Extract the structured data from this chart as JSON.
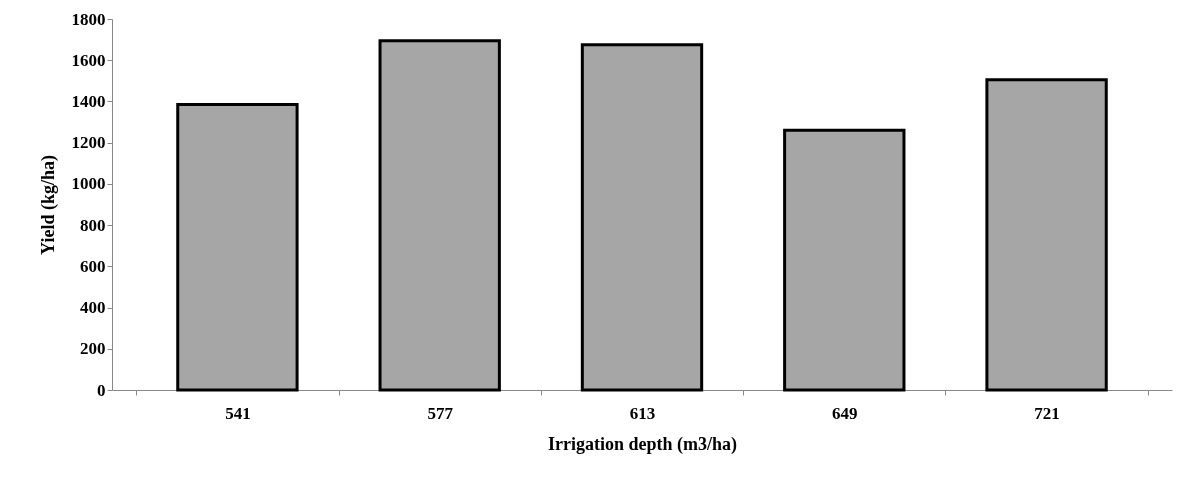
{
  "chart_data": {
    "type": "bar",
    "xlabel": "Irrigation depth (m3/ha)",
    "ylabel": "Yield (kg/ha)",
    "categories": [
      "541",
      "577",
      "613",
      "649",
      "721"
    ],
    "values": [
      1385,
      1695,
      1675,
      1260,
      1505
    ],
    "color": "#a6a6a6",
    "ylim": [
      0,
      1800
    ],
    "yticks": [
      0,
      200,
      400,
      600,
      800,
      1000,
      1200,
      1400,
      1600,
      1800
    ],
    "grid": false
  }
}
